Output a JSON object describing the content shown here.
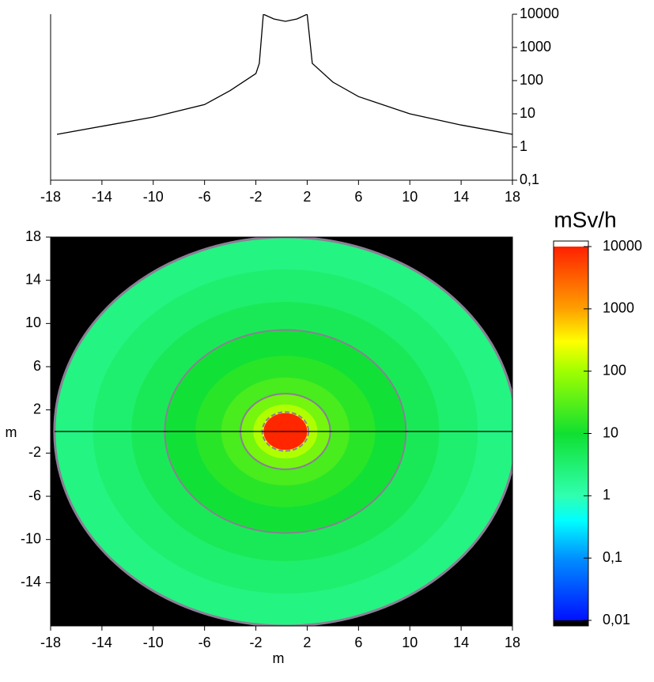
{
  "chart_data": [
    {
      "type": "line",
      "log_y": true,
      "color": "#000000",
      "x": [
        -17.5,
        -14,
        -10,
        -6,
        -4,
        -2,
        -1.73,
        -1.42,
        -0.6,
        0.3,
        1.2,
        2.0,
        2.4,
        4,
        6,
        10,
        14,
        18
      ],
      "values": [
        2.4,
        4.2,
        8,
        19,
        50,
        163,
        330,
        10000,
        7200,
        6100,
        7200,
        10000,
        330,
        90,
        33,
        10,
        4.6,
        2.4
      ],
      "xlim": [
        -18,
        18
      ],
      "xticks": [
        -18,
        -14,
        -10,
        -6,
        -2,
        2,
        6,
        10,
        14,
        18
      ],
      "ylim": [
        0.1,
        10000
      ],
      "yticks": [
        {
          "value": 0.1,
          "label": "0,1"
        },
        1,
        10,
        100,
        1000,
        10000
      ]
    },
    {
      "type": "heatmap",
      "xlabel": "m",
      "ylabel": "m",
      "xlim": [
        -18,
        18
      ],
      "ylim": [
        -18,
        18
      ],
      "xticks": [
        -18,
        -14,
        -10,
        -6,
        -2,
        2,
        6,
        10,
        14,
        18
      ],
      "yticks": [
        -14,
        -10,
        -6,
        -2,
        2,
        6,
        10,
        14,
        18
      ],
      "center": [
        0.3,
        0
      ],
      "radii": [
        18,
        15,
        12,
        9.4,
        7,
        5,
        3.5,
        2.5,
        1.8,
        1.7
      ],
      "values": [
        2.3,
        3.3,
        5,
        9,
        15,
        25,
        50,
        120,
        330,
        9000
      ],
      "contour_radii": [
        18,
        9.4,
        3.5,
        1.8
      ],
      "contour_color": "#8a7f95",
      "profile_y": 0,
      "colorscale": [
        {
          "value": 0.01,
          "color": "#0010ff"
        },
        {
          "value": 0.1,
          "color": "#0090ff"
        },
        {
          "value": 0.4,
          "color": "#00ffff"
        },
        {
          "value": 1,
          "color": "#30ffb0"
        },
        {
          "value": 10,
          "color": "#10e030"
        },
        {
          "value": 100,
          "color": "#a0ff00"
        },
        {
          "value": 300,
          "color": "#ffff00"
        },
        {
          "value": 1000,
          "color": "#ffa000"
        },
        {
          "value": 10000,
          "color": "#ff2000"
        }
      ],
      "colorbar": {
        "title": "mSv/h",
        "lim": [
          0.01,
          10000
        ],
        "ticks": [
          {
            "value": 0.01,
            "label": "0,01"
          },
          {
            "value": 0.1,
            "label": "0,1"
          },
          1,
          10,
          100,
          1000,
          10000
        ]
      }
    }
  ]
}
